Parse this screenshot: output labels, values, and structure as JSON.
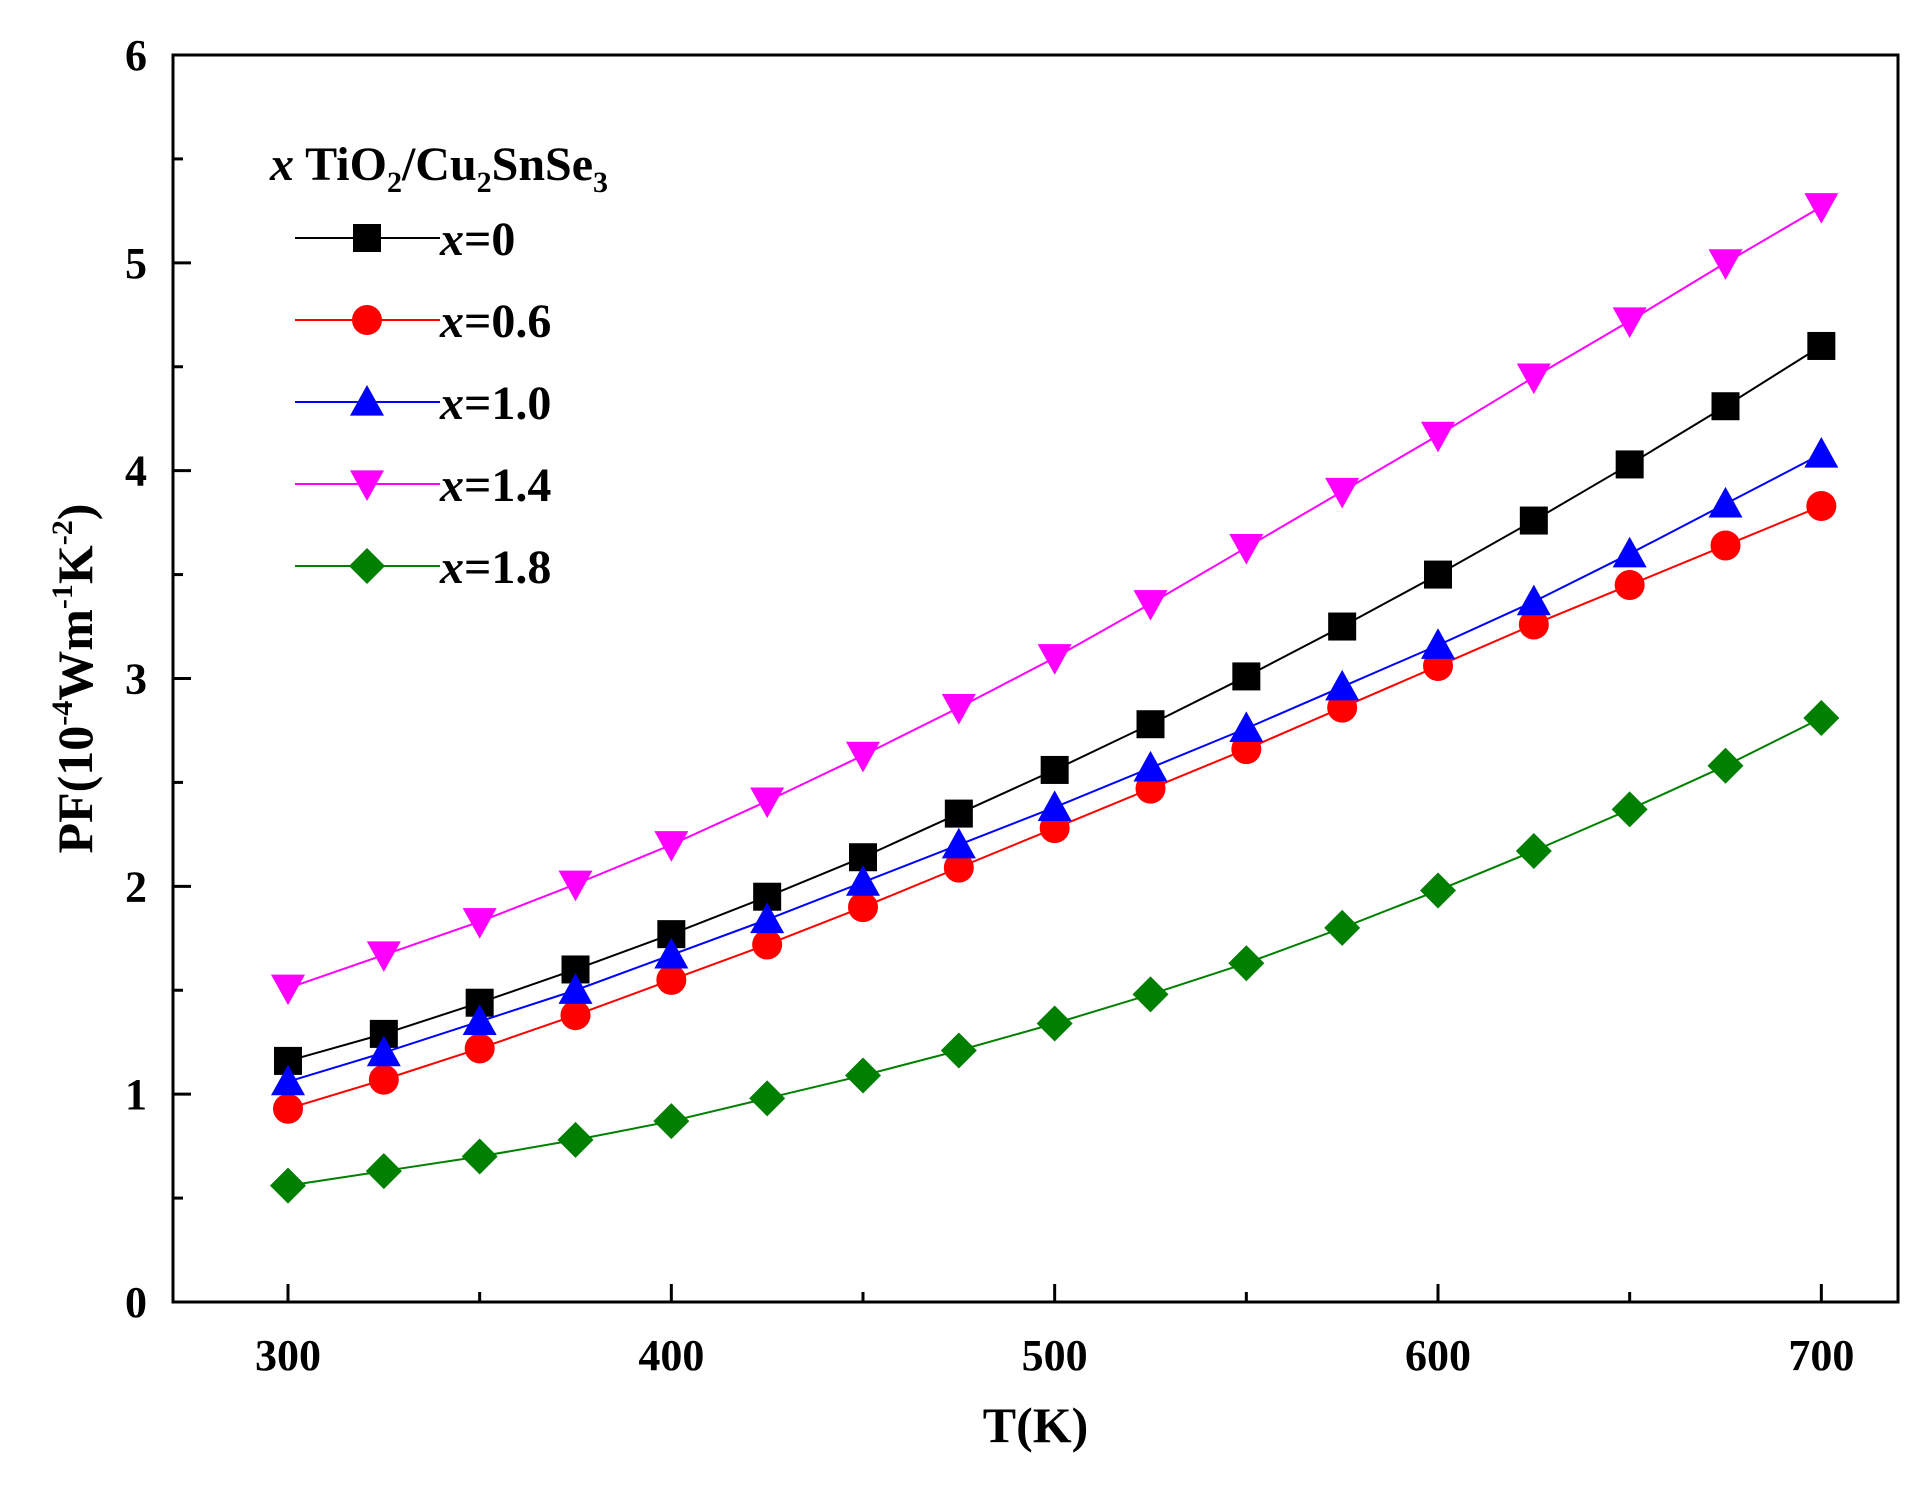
{
  "chart_data": {
    "type": "line",
    "title": "",
    "xlabel": "T(K)",
    "ylabel": {
      "prefix": "PF(10",
      "exp1": "-4",
      "mid1": "Wm",
      "exp2": "-1",
      "mid2": "K",
      "exp3": "-2",
      "suffix": ")"
    },
    "xlim": [
      270,
      720
    ],
    "ylim": [
      0,
      6
    ],
    "x_ticks": [
      300,
      400,
      500,
      600,
      700
    ],
    "x_tick_labels": [
      "300",
      "400",
      "500",
      "600",
      "700"
    ],
    "y_ticks": [
      0,
      1,
      2,
      3,
      4,
      5,
      6
    ],
    "y_tick_labels": [
      "0",
      "1",
      "2",
      "3",
      "4",
      "5",
      "6"
    ],
    "grid": false,
    "legend_position": "top-left",
    "legend_title": {
      "var": "x",
      "text1": " TiO",
      "sub1": "2",
      "text2": "/Cu",
      "sub2": "2",
      "text3": "SnSe",
      "sub3": "3"
    },
    "x": [
      300,
      325,
      350,
      375,
      400,
      425,
      450,
      475,
      500,
      525,
      550,
      575,
      600,
      625,
      650,
      675,
      700
    ],
    "series": [
      {
        "name": "x=0",
        "var": "x",
        "label": "=0",
        "marker": "square",
        "color": "#000000",
        "values": [
          1.16,
          1.29,
          1.44,
          1.6,
          1.77,
          1.95,
          2.14,
          2.35,
          2.56,
          2.78,
          3.01,
          3.25,
          3.5,
          3.76,
          4.03,
          4.31,
          4.6
        ]
      },
      {
        "name": "x=0.6",
        "var": "x",
        "label": "=0.6",
        "marker": "circle",
        "color": "#ff0000",
        "values": [
          0.93,
          1.07,
          1.22,
          1.38,
          1.55,
          1.72,
          1.9,
          2.09,
          2.28,
          2.47,
          2.66,
          2.86,
          3.06,
          3.26,
          3.45,
          3.64,
          3.83
        ]
      },
      {
        "name": "x=1.0",
        "var": "x",
        "label": "=1.0",
        "marker": "triangle-up",
        "color": "#0000ff",
        "values": [
          1.06,
          1.2,
          1.35,
          1.5,
          1.67,
          1.84,
          2.02,
          2.2,
          2.38,
          2.57,
          2.76,
          2.96,
          3.16,
          3.37,
          3.6,
          3.84,
          4.08
        ]
      },
      {
        "name": "x=1.4",
        "var": "x",
        "label": "=1.4",
        "marker": "triangle-down",
        "color": "#ff00ff",
        "values": [
          1.51,
          1.67,
          1.83,
          2.01,
          2.2,
          2.41,
          2.63,
          2.86,
          3.1,
          3.36,
          3.63,
          3.9,
          4.17,
          4.45,
          4.72,
          5.0,
          5.27
        ]
      },
      {
        "name": "x=1.8",
        "var": "x",
        "label": "=1.8",
        "marker": "diamond",
        "color": "#008000",
        "values": [
          0.56,
          0.63,
          0.7,
          0.78,
          0.87,
          0.98,
          1.09,
          1.21,
          1.34,
          1.48,
          1.63,
          1.8,
          1.98,
          2.17,
          2.37,
          2.58,
          2.81
        ]
      }
    ]
  }
}
